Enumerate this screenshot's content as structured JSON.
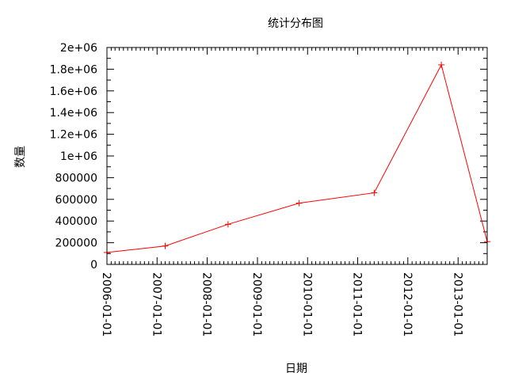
{
  "chart_data": {
    "type": "line",
    "title": "统计分布图",
    "xlabel": "日期",
    "ylabel": "数量",
    "ylim": [
      0,
      2000000
    ],
    "xlim": [
      "2006-01-01",
      "2013-08-01"
    ],
    "x_tick_labels": [
      "2006-01-01",
      "2007-01-01",
      "2008-01-01",
      "2009-01-01",
      "2010-01-01",
      "2011-01-01",
      "2012-01-01",
      "2013-01-01"
    ],
    "y_tick_labels": [
      "0",
      "200000",
      "400000",
      "600000",
      "800000",
      "1e+06",
      "1.2e+06",
      "1.4e+06",
      "1.6e+06",
      "1.8e+06",
      "2e+06"
    ],
    "series": [
      {
        "color": "#ff0000",
        "marker": "plus",
        "x": [
          "2006-01-01",
          "2007-03-01",
          "2008-06-01",
          "2009-11-01",
          "2011-05-01",
          "2012-09-01",
          "2013-08-01"
        ],
        "y": [
          110000,
          170000,
          370000,
          565000,
          660000,
          1840000,
          210000
        ]
      }
    ],
    "grid": false,
    "mirror_ticks": true
  }
}
